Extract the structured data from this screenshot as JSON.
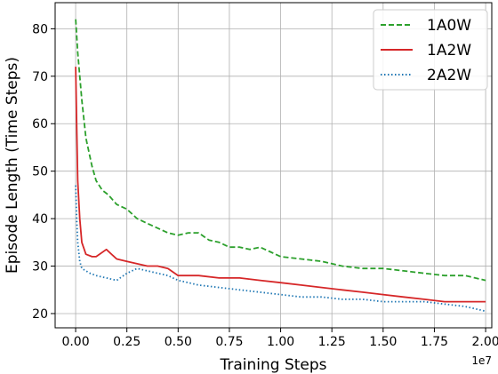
{
  "chart_data": {
    "type": "line",
    "xlabel": "Training Steps",
    "ylabel": "Episode Length (Time Steps)",
    "x_offset_label": "1e7",
    "xlim": [
      -0.1,
      2.03
    ],
    "ylim": [
      17,
      85.5
    ],
    "x_ticks": [
      0.0,
      0.25,
      0.5,
      0.75,
      1.0,
      1.25,
      1.5,
      1.75,
      2.0
    ],
    "x_tick_labels": [
      "0.00",
      "0.25",
      "0.50",
      "0.75",
      "1.00",
      "1.25",
      "1.50",
      "1.75",
      "2.00"
    ],
    "y_ticks": [
      20,
      30,
      40,
      50,
      60,
      70,
      80
    ],
    "y_tick_labels": [
      "20",
      "30",
      "40",
      "50",
      "60",
      "70",
      "80"
    ],
    "grid": true,
    "legend_position": "top-right",
    "colors": {
      "1A0W": "#2ca02c",
      "1A2W": "#d62728",
      "2A2W": "#1f77b4"
    },
    "series": [
      {
        "name": "1A0W",
        "style": "dashed",
        "x": [
          0.0,
          0.01,
          0.03,
          0.05,
          0.08,
          0.1,
          0.13,
          0.16,
          0.2,
          0.25,
          0.3,
          0.35,
          0.4,
          0.45,
          0.5,
          0.55,
          0.6,
          0.65,
          0.7,
          0.75,
          0.8,
          0.85,
          0.9,
          0.95,
          1.0,
          1.1,
          1.2,
          1.3,
          1.4,
          1.5,
          1.6,
          1.7,
          1.8,
          1.9,
          2.0
        ],
        "y": [
          82,
          75,
          65,
          57,
          51,
          48,
          46,
          45,
          43,
          42,
          40,
          39,
          38,
          37,
          36.5,
          37,
          37,
          35.5,
          35,
          34,
          34,
          33.5,
          34,
          33,
          32,
          31.5,
          31,
          30,
          29.5,
          29.5,
          29,
          28.5,
          28,
          28,
          27
        ]
      },
      {
        "name": "1A2W",
        "style": "solid",
        "x": [
          0.0,
          0.005,
          0.01,
          0.02,
          0.03,
          0.05,
          0.08,
          0.1,
          0.15,
          0.2,
          0.25,
          0.3,
          0.35,
          0.4,
          0.45,
          0.5,
          0.55,
          0.6,
          0.7,
          0.8,
          0.9,
          1.0,
          1.1,
          1.2,
          1.3,
          1.4,
          1.5,
          1.6,
          1.7,
          1.8,
          1.9,
          2.0
        ],
        "y": [
          72,
          60,
          48,
          40,
          35,
          32.5,
          32,
          32,
          33.5,
          31.5,
          31,
          30.5,
          30,
          30,
          29.5,
          28,
          28,
          28,
          27.5,
          27.5,
          27,
          26.5,
          26,
          25.5,
          25,
          24.5,
          24,
          23.5,
          23,
          22.5,
          22.5,
          22.5
        ]
      },
      {
        "name": "2A2W",
        "style": "dotted",
        "x": [
          0.0,
          0.005,
          0.01,
          0.02,
          0.03,
          0.05,
          0.07,
          0.1,
          0.15,
          0.2,
          0.25,
          0.3,
          0.35,
          0.4,
          0.45,
          0.5,
          0.55,
          0.6,
          0.7,
          0.8,
          0.9,
          1.0,
          1.1,
          1.2,
          1.3,
          1.4,
          1.5,
          1.6,
          1.7,
          1.8,
          1.9,
          2.0
        ],
        "y": [
          47,
          40,
          35,
          31,
          29.5,
          29,
          28.5,
          28,
          27.5,
          27,
          28.5,
          29.5,
          29,
          28.5,
          28,
          27,
          26.5,
          26,
          25.5,
          25,
          24.5,
          24,
          23.5,
          23.5,
          23,
          23,
          22.5,
          22.5,
          22.5,
          22,
          21.5,
          20.5
        ]
      }
    ]
  }
}
